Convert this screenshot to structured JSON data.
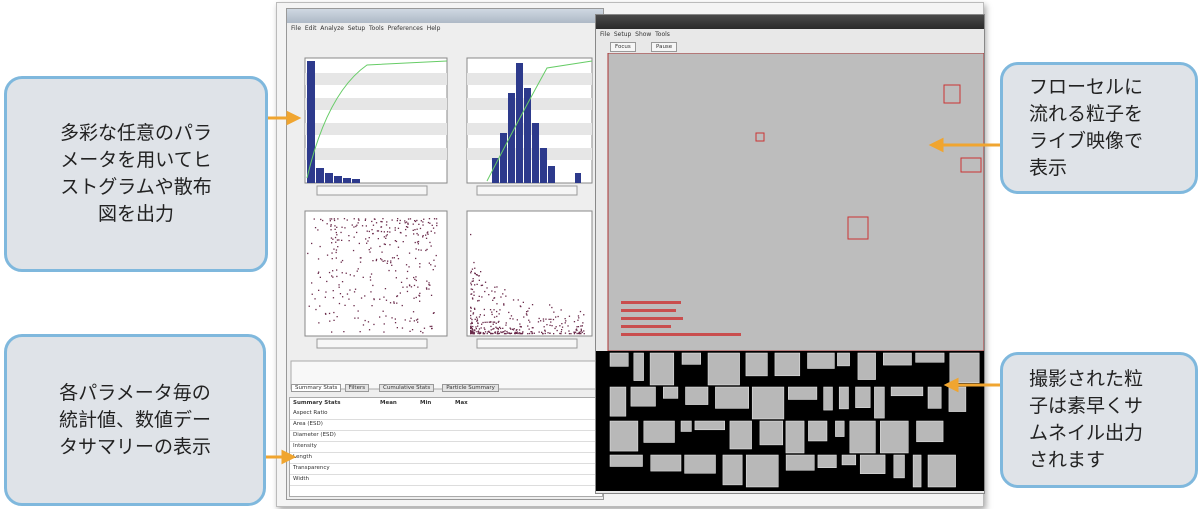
{
  "callouts": [
    {
      "lines": [
        "多彩な任意のパラ",
        "メータを用いてヒ",
        "ストグラムや散布",
        "図を出力"
      ]
    },
    {
      "lines": [
        "各パラメータ毎の",
        "統計値、数値デー",
        "タサマリーの表示"
      ]
    },
    {
      "lines": [
        "フローセルに",
        "流れる粒子を",
        "ライブ映像で",
        "表示"
      ]
    },
    {
      "lines": [
        "撮影された粒",
        "子は素早くサ",
        "ムネイル出力",
        "されます"
      ]
    }
  ],
  "left_window": {
    "menu": "File  Edit  Analyze  Setup  Tools  Preferences  Help",
    "tabs": [
      "Summary Stats",
      "Filters",
      "Cumulative Stats",
      "Particle Summary"
    ],
    "table_header": [
      "Summary Stats",
      "Mean",
      "Min",
      "Max"
    ],
    "table_rows": [
      "Aspect Ratio",
      "Area (ESD)",
      "Diameter (ESD)",
      "Intensity",
      "Length",
      "Transparency",
      "Width"
    ]
  },
  "right_window": {
    "menu": "File  Setup  Show  Tools",
    "buttons": [
      "Focus",
      "Pause"
    ]
  }
}
